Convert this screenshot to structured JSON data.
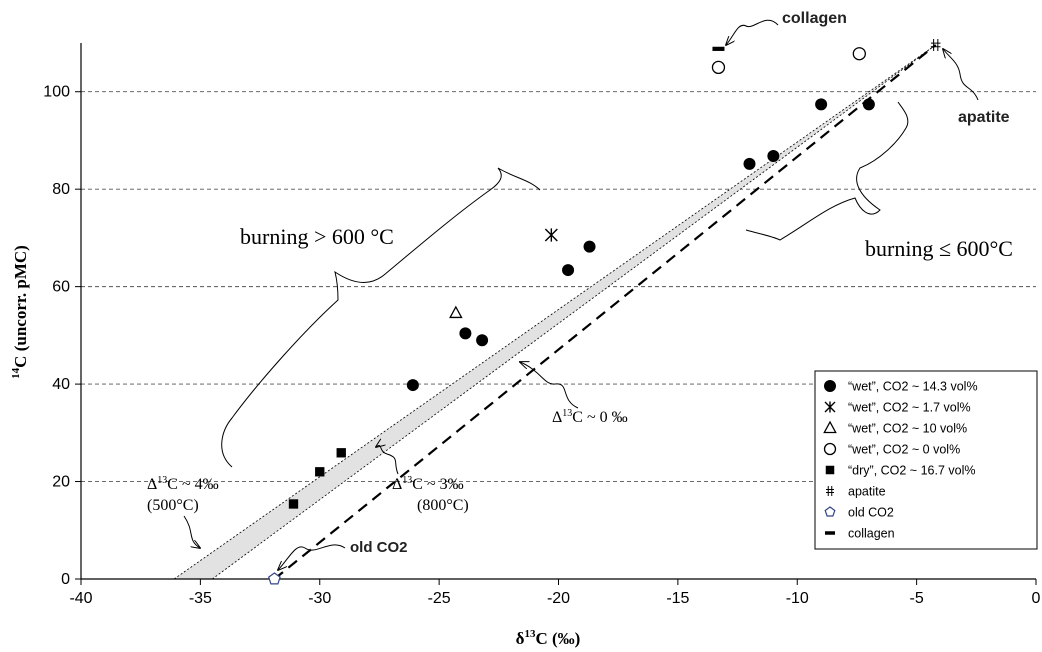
{
  "chart_data": {
    "type": "scatter",
    "xlabel_base": "δ",
    "xlabel_sup": "13",
    "xlabel_rest": "C (‰)",
    "ylabel_sup": "14",
    "ylabel_rest": "C (uncorr. pMC)",
    "xlim": [
      -40,
      0
    ],
    "ylim": [
      0,
      110
    ],
    "x_ticks": [
      -40,
      -35,
      -30,
      -25,
      -20,
      -15,
      -10,
      -5,
      0
    ],
    "y_ticks": [
      0,
      20,
      40,
      60,
      80,
      100
    ],
    "grid": "horizontal dashed at y ticks",
    "legend_position": "right",
    "series": [
      {
        "name": "“wet”, CO2 ~ 14.3 vol%",
        "marker": "filled-circle",
        "points": [
          [
            -26.1,
            39.8
          ],
          [
            -23.9,
            50.4
          ],
          [
            -23.2,
            49.0
          ],
          [
            -19.6,
            63.4
          ],
          [
            -18.7,
            68.2
          ],
          [
            -12.0,
            85.2
          ],
          [
            -11.0,
            86.8
          ],
          [
            -9.0,
            97.4
          ],
          [
            -7.0,
            97.4
          ]
        ]
      },
      {
        "name": "“wet”, CO2 ~ 1.7 vol%",
        "marker": "asterisk",
        "points": [
          [
            -20.3,
            70.6
          ]
        ]
      },
      {
        "name": "“wet”, CO2 ~ 10 vol%",
        "marker": "open-triangle",
        "points": [
          [
            -24.3,
            54.6
          ]
        ]
      },
      {
        "name": "“wet”, CO2 ~ 0 vol%",
        "marker": "open-circle",
        "points": [
          [
            -13.3,
            105.0
          ],
          [
            -7.4,
            107.8
          ]
        ]
      },
      {
        "name": "“dry”, CO2 ~ 16.7 vol%",
        "marker": "filled-square",
        "points": [
          [
            -31.1,
            15.4
          ],
          [
            -30.0,
            22.0
          ],
          [
            -29.1,
            25.9
          ]
        ]
      },
      {
        "name": "apatite",
        "marker": "double-cross",
        "points": [
          [
            -4.2,
            109.6
          ]
        ]
      },
      {
        "name": "old CO2",
        "marker": "open-pentagon",
        "points": [
          [
            -31.9,
            0.0
          ]
        ]
      },
      {
        "name": "collagen",
        "marker": "dash",
        "points": [
          [
            -13.3,
            108.8
          ]
        ]
      }
    ],
    "lines": [
      {
        "label": "Δ¹³C ~ 0 ‰",
        "style": "dashed",
        "from": [
          -31.9,
          0.0
        ],
        "to": [
          -4.2,
          109.6
        ]
      },
      {
        "label": "Δ¹³C ~ 3‰ (800°C)",
        "style": "dotted",
        "from": [
          -34.5,
          0.0
        ],
        "to": [
          -4.2,
          109.6
        ]
      },
      {
        "label": "Δ¹³C ~ 4‰ (500°C)",
        "style": "dotted",
        "from": [
          -36.1,
          0.0
        ],
        "to": [
          -4.2,
          109.6
        ]
      }
    ],
    "annotations": {
      "collagen": "collagen",
      "apatite": "apatite",
      "old_co2": "old CO2",
      "burning_high": "burning > 600 °C",
      "burning_low": "burning ≤ 600°C",
      "delta0_pre": "Δ",
      "delta0_sup": "13",
      "delta0_post": "C ~ 0 ‰",
      "delta3_pre": "Δ",
      "delta3_sup": "13",
      "delta3_post": "C ~ 3‰",
      "delta3_temp": "(800°C)",
      "delta4_pre": "Δ",
      "delta4_sup": "13",
      "delta4_post": "C ~ 4‰",
      "delta4_temp": "(500°C)"
    }
  }
}
